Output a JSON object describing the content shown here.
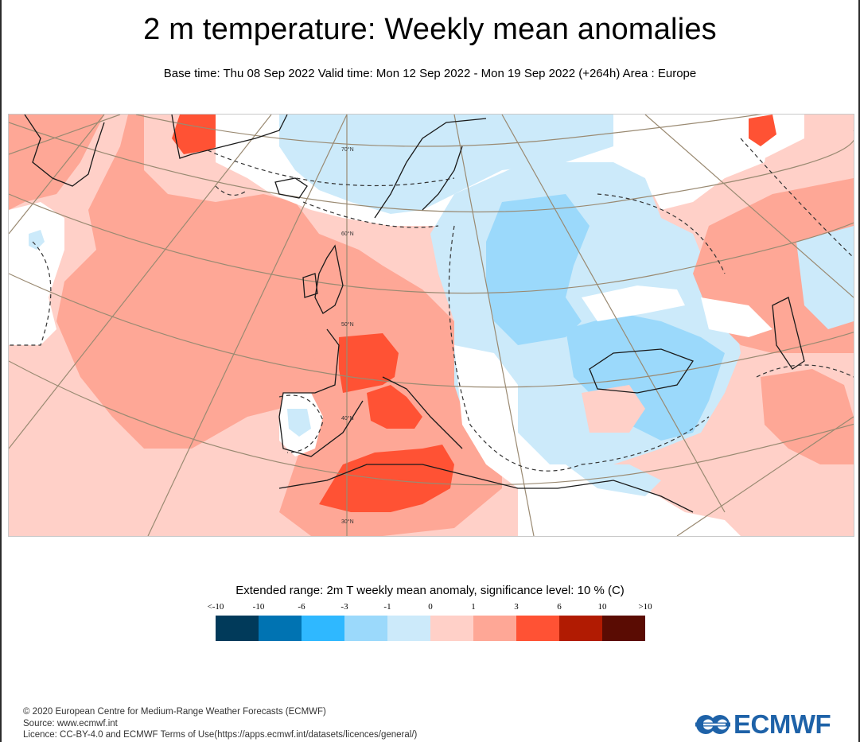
{
  "header": {
    "title": "2 m temperature: Weekly mean anomalies",
    "subtitle": "Base time: Thu 08 Sep 2022 Valid time: Mon 12 Sep 2022 - Mon 19 Sep 2022 (+264h) Area : Europe"
  },
  "map": {
    "area": "Europe",
    "projection_graticule_labels": [
      "70°N",
      "60°N",
      "50°N",
      "40°N",
      "30°N"
    ],
    "colors": {
      "graticule": "#9a8a72",
      "coastline": "#1a1a1a",
      "significance_contour": "#333333",
      "land_border": "#555555"
    }
  },
  "legend": {
    "title": "Extended range: 2m T weekly mean anomaly, significance level: 10 % (C)",
    "labels": [
      "<-10",
      "-10",
      "-6",
      "-3",
      "-1",
      "0",
      "1",
      "3",
      "6",
      "10",
      ">10"
    ],
    "bins": [
      {
        "range": "<-10",
        "color": "#013a5a"
      },
      {
        "range": "-10 to -6",
        "color": "#0073b2"
      },
      {
        "range": "-6 to -3",
        "color": "#2fb8ff"
      },
      {
        "range": "-3 to -1",
        "color": "#9bd9fb"
      },
      {
        "range": "-1 to 0",
        "color": "#cceafa"
      },
      {
        "range": "0 to 1",
        "color": "#ffd0c8"
      },
      {
        "range": "1 to 3",
        "color": "#fea796"
      },
      {
        "range": "3 to 6",
        "color": "#ff5234"
      },
      {
        "range": "6 to 10",
        "color": "#b11b02"
      },
      {
        "range": ">10",
        "color": "#5a0c03"
      }
    ]
  },
  "footer": {
    "copyright": "© 2020 European Centre for Medium-Range Weather Forecasts (ECMWF)",
    "source": "Source: www.ecmwf.int",
    "licence": "Licence: CC-BY-4.0 and ECMWF Terms of Use(https://apps.ecmwf.int/datasets/licences/general/)"
  },
  "logo": {
    "text": "ECMWF",
    "color": "#1e62a8"
  }
}
